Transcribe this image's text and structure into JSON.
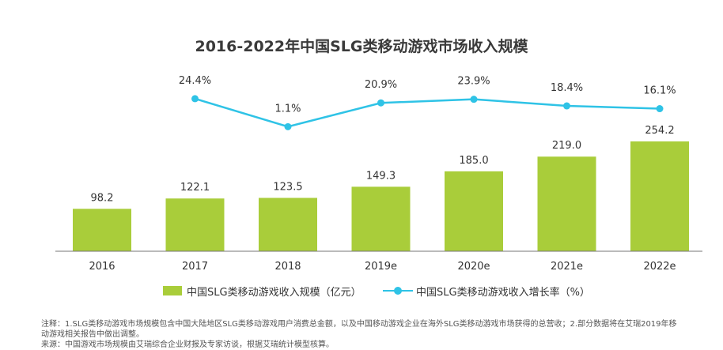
{
  "chart_data": {
    "type": "bar+line",
    "title": "2016-2022年中国SLG类移动游戏市场收入规模",
    "categories": [
      "2016",
      "2017",
      "2018",
      "2019e",
      "2020e",
      "2021e",
      "2022e"
    ],
    "series": [
      {
        "name": "中国SLG类移动游戏收入规模（亿元）",
        "type": "bar",
        "values": [
          98.2,
          122.1,
          123.5,
          149.3,
          185.0,
          219.0,
          254.2
        ],
        "labels": [
          "98.2",
          "122.1",
          "123.5",
          "149.3",
          "185.0",
          "219.0",
          "254.2"
        ],
        "color": "#a9cd3a"
      },
      {
        "name": "中国SLG类移动游戏收入增长率（%）",
        "type": "line",
        "values": [
          null,
          24.4,
          1.1,
          20.9,
          23.9,
          18.4,
          16.1
        ],
        "labels": [
          "",
          "24.4%",
          "1.1%",
          "20.9%",
          "23.9%",
          "18.4%",
          "16.1%"
        ],
        "color": "#2fc3e6"
      }
    ],
    "legend": "bottom-center"
  },
  "notes": {
    "line1": "注释：1.SLG类移动游戏市场规模包含中国大陆地区SLG类移动游戏用户消费总金额，以及中国移动游戏企业在海外SLG类移动游戏市场获得的总营收；2.部分数据将在艾瑞2019年移",
    "line2": "动游戏相关报告中做出调整。",
    "line3": "来源：中国游戏市场规模由艾瑞综合企业财报及专家访谈，根据艾瑞统计模型核算。"
  }
}
